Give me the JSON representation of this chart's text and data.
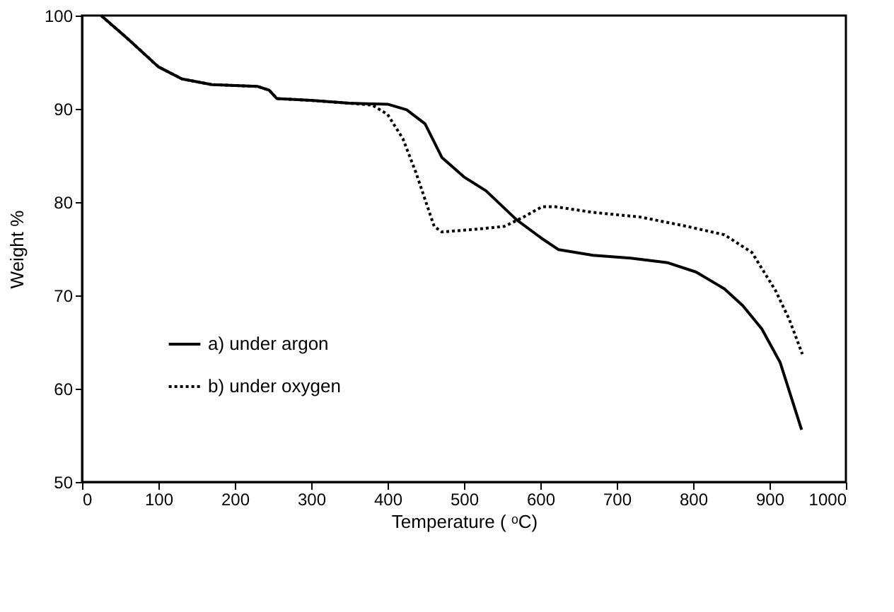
{
  "chart_data": {
    "type": "line",
    "xlabel": "Temperature ( ᵒC)",
    "ylabel": "Weight %",
    "xlim": [
      0,
      1000
    ],
    "xticks": [
      0,
      100,
      200,
      300,
      400,
      500,
      600,
      700,
      800,
      900,
      1000
    ],
    "ylim": [
      50,
      100
    ],
    "yticks": [
      50,
      60,
      70,
      80,
      90,
      100
    ],
    "grid": false,
    "legend": "bottom left",
    "marker": "none",
    "series": [
      {
        "name": "a) under argon",
        "color": "#000000",
        "line_style": "solid",
        "x": [
          25,
          60,
          100,
          131,
          170,
          230,
          245,
          255,
          300,
          350,
          400,
          425,
          449,
          471,
          500,
          529,
          569,
          602,
          624,
          669,
          718,
          767,
          804,
          841,
          865,
          890,
          914,
          942
        ],
        "values": [
          100,
          97.5,
          94.5,
          93.2,
          92.6,
          92.4,
          92.0,
          91.1,
          90.9,
          90.6,
          90.5,
          89.9,
          88.4,
          84.8,
          82.7,
          81.2,
          78.1,
          76.1,
          74.9,
          74.3,
          74.0,
          73.5,
          72.5,
          70.7,
          68.9,
          66.4,
          62.8,
          55.6
        ]
      },
      {
        "name": "b) under oxygen",
        "color": "#000000",
        "line_style": "dotted",
        "x": [
          25,
          60,
          100,
          131,
          170,
          230,
          245,
          255,
          300,
          350,
          380,
          400,
          420,
          437,
          456,
          461,
          471,
          517,
          553,
          578,
          602,
          620,
          669,
          731,
          792,
          841,
          877,
          908,
          926,
          943
        ],
        "values": [
          100,
          97.5,
          94.5,
          93.2,
          92.6,
          92.4,
          92.0,
          91.1,
          90.9,
          90.6,
          90.4,
          89.4,
          86.8,
          83.2,
          78.6,
          77.4,
          76.8,
          77.1,
          77.4,
          78.4,
          79.5,
          79.5,
          78.9,
          78.4,
          77.4,
          76.5,
          74.6,
          70.5,
          67.4,
          63.7
        ]
      }
    ]
  }
}
